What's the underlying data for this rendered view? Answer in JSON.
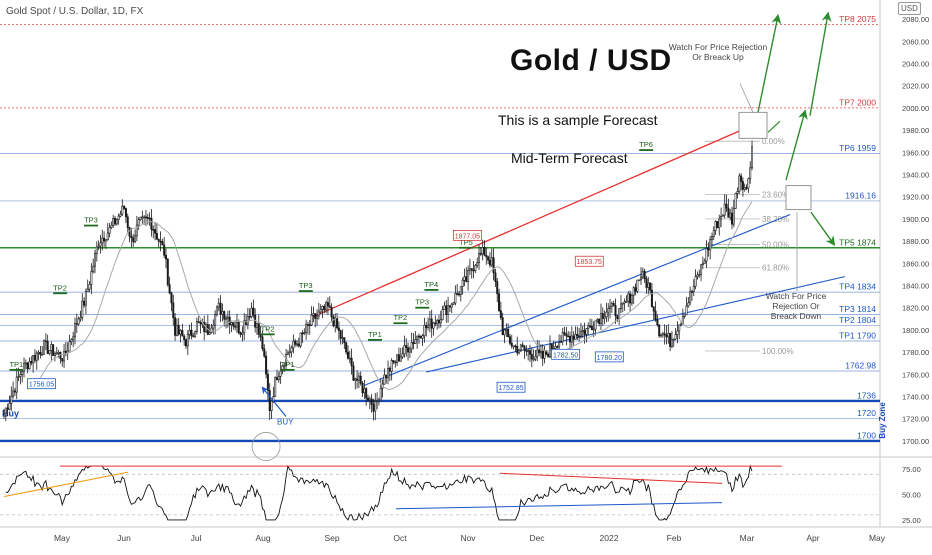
{
  "header": {
    "symbol": "Gold Spot / U.S. Dollar, 1D, FX",
    "currency": "USD"
  },
  "annotations": {
    "title": "Gold / USD",
    "subtitle1": "This is a sample Forecast",
    "subtitle2": "Mid-Term Forecast",
    "watch_up": "Watch For Price Rejection Or Breack Up",
    "watch_down": "Watch For Price Rejection Or Breack Down",
    "buy_zone": "Buy Zone",
    "buy_left": "Buy",
    "buy_mark": "BUY"
  },
  "colors": {
    "blue_line": "#1e58c8",
    "red_line": "#e83030",
    "green_line": "#2e8b2e",
    "candle": "#1a1a1a",
    "ma": "#a9a9a9",
    "level_blue": "#2962ff",
    "level_red": "#e04444"
  },
  "chart_data": {
    "type": "candlestick",
    "instrument": "XAUUSD",
    "timeframe": "1D",
    "ylim": [
      1690,
      2090
    ],
    "y_ticks": [
      1700,
      1720,
      1740,
      1760,
      1780,
      1800,
      1820,
      1840,
      1860,
      1880,
      1900,
      1920,
      1940,
      1960,
      1980,
      2000,
      2020,
      2040,
      2060,
      2080
    ],
    "x_ticks": [
      "May",
      "Jun",
      "Jul",
      "Aug",
      "Sep",
      "Oct",
      "Nov",
      "Dec",
      "2022",
      "Feb",
      "Mar",
      "Apr",
      "May"
    ],
    "price_path": [
      [
        0,
        1725
      ],
      [
        10,
        1765
      ],
      [
        22,
        1785
      ],
      [
        33,
        1775
      ],
      [
        45,
        1830
      ],
      [
        52,
        1880
      ],
      [
        58,
        1890
      ],
      [
        66,
        1910
      ],
      [
        70,
        1880
      ],
      [
        74,
        1895
      ],
      [
        80,
        1900
      ],
      [
        88,
        1870
      ],
      [
        94,
        1800
      ],
      [
        100,
        1790
      ],
      [
        106,
        1805
      ],
      [
        112,
        1800
      ],
      [
        118,
        1820
      ],
      [
        124,
        1810
      ],
      [
        130,
        1800
      ],
      [
        136,
        1820
      ],
      [
        142,
        1785
      ],
      [
        146,
        1730
      ],
      [
        150,
        1760
      ],
      [
        156,
        1780
      ],
      [
        162,
        1790
      ],
      [
        170,
        1810
      ],
      [
        178,
        1820
      ],
      [
        186,
        1790
      ],
      [
        192,
        1760
      ],
      [
        198,
        1745
      ],
      [
        204,
        1730
      ],
      [
        208,
        1755
      ],
      [
        214,
        1770
      ],
      [
        222,
        1785
      ],
      [
        230,
        1800
      ],
      [
        238,
        1810
      ],
      [
        246,
        1825
      ],
      [
        254,
        1845
      ],
      [
        260,
        1865
      ],
      [
        264,
        1870
      ],
      [
        268,
        1860
      ],
      [
        274,
        1800
      ],
      [
        280,
        1785
      ],
      [
        288,
        1780
      ],
      [
        296,
        1775
      ],
      [
        304,
        1790
      ],
      [
        312,
        1795
      ],
      [
        320,
        1800
      ],
      [
        326,
        1810
      ],
      [
        332,
        1820
      ],
      [
        338,
        1815
      ],
      [
        344,
        1830
      ],
      [
        350,
        1850
      ],
      [
        354,
        1840
      ],
      [
        360,
        1800
      ],
      [
        366,
        1790
      ],
      [
        372,
        1810
      ],
      [
        378,
        1835
      ],
      [
        384,
        1860
      ],
      [
        390,
        1890
      ],
      [
        396,
        1910
      ],
      [
        400,
        1900
      ],
      [
        404,
        1940
      ],
      [
        408,
        1925
      ],
      [
        411,
        1965
      ]
    ],
    "price_path_x_unit": "trading-day index (0 = first visible candle, ~late Apr 2021; last = early Mar 2022)",
    "horizontal_levels": [
      {
        "label": "TP8 2075",
        "value": 2075,
        "color": "red"
      },
      {
        "label": "TP7 2000",
        "value": 2000,
        "color": "red"
      },
      {
        "label": "TP6 1959",
        "value": 1959,
        "color": "blue"
      },
      {
        "label": "1916.16",
        "value": 1916.16,
        "color": "blue"
      },
      {
        "label": "TP5 1874",
        "value": 1874,
        "color": "green"
      },
      {
        "label": "TP4 1834",
        "value": 1834,
        "color": "blue"
      },
      {
        "label": "TP3 1814",
        "value": 1814,
        "color": "blue"
      },
      {
        "label": "TP2 1804",
        "value": 1804,
        "color": "blue"
      },
      {
        "label": "TP1 1790",
        "value": 1790,
        "color": "blue"
      },
      {
        "label": "1762.98",
        "value": 1762.98,
        "color": "blue"
      },
      {
        "label": "1736",
        "value": 1736,
        "color": "blue"
      },
      {
        "label": "1720",
        "value": 1720,
        "color": "blue"
      },
      {
        "label": "1700",
        "value": 1700,
        "color": "blue"
      }
    ],
    "fib_levels": [
      {
        "label": "0.00%",
        "value": 1970
      },
      {
        "label": "23.60%",
        "value": 1922
      },
      {
        "label": "38.20%",
        "value": 1900
      },
      {
        "label": "50.00%",
        "value": 1877
      },
      {
        "label": "61.80%",
        "value": 1856
      },
      {
        "label": "100.00%",
        "value": 1781
      }
    ],
    "price_labels": [
      {
        "text": "1756.05",
        "value": 1756.05
      },
      {
        "text": "1877.05",
        "value": 1877.05
      },
      {
        "text": "1752.85",
        "value": 1752.85
      },
      {
        "text": "1782.50",
        "value": 1782.5
      },
      {
        "text": "1853.75",
        "value": 1853.75
      },
      {
        "text": "1780.20",
        "value": 1780.2
      }
    ],
    "tp_markers": [
      "TP1",
      "TP2",
      "TP3",
      "TP1",
      "TP2",
      "TP3",
      "TP1",
      "TP2",
      "TP3",
      "TP4",
      "TP5",
      "TP6"
    ],
    "rsi": {
      "ylim": [
        20,
        85
      ],
      "y_ticks": [
        25.0,
        50.0,
        75.0
      ],
      "last": 73
    }
  }
}
